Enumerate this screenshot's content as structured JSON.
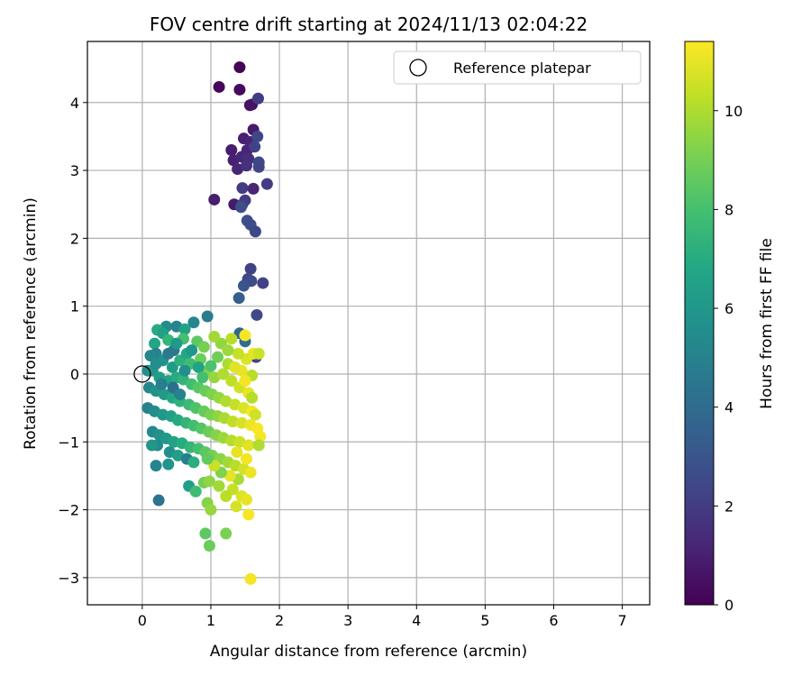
{
  "chart_data": {
    "type": "scatter",
    "title": "FOV centre drift starting at 2024/11/13 02:04:22",
    "xlabel": "Angular distance from reference (arcmin)",
    "ylabel": "Rotation from reference (arcmin)",
    "xlim": [
      -0.8,
      7.4
    ],
    "ylim": [
      -3.4,
      4.9
    ],
    "xticks": [
      0,
      1,
      2,
      3,
      4,
      5,
      6,
      7
    ],
    "yticks": [
      -3,
      -2,
      -1,
      0,
      1,
      2,
      3,
      4
    ],
    "grid": true,
    "legend": {
      "placement": "top-right",
      "entries": [
        "Reference platepar"
      ]
    },
    "reference_point": {
      "x": 0,
      "y": 0,
      "label": "Reference platepar"
    },
    "colorbar": {
      "label": "Hours from first FF file",
      "range": [
        0,
        11.4
      ],
      "ticks": [
        0,
        2,
        4,
        6,
        8,
        10
      ],
      "colormap": "viridis"
    },
    "series": [
      {
        "note": "scatter points [x, y, hours]",
        "points": [
          [
            1.42,
            4.52,
            0.1
          ],
          [
            1.12,
            4.23,
            0.2
          ],
          [
            1.42,
            4.19,
            0.3
          ],
          [
            1.57,
            3.96,
            0.5
          ],
          [
            1.6,
            3.97,
            0.6
          ],
          [
            1.69,
            4.06,
            2.0
          ],
          [
            1.62,
            3.6,
            0.8
          ],
          [
            1.48,
            3.47,
            1.0
          ],
          [
            1.58,
            3.42,
            1.1
          ],
          [
            1.3,
            3.3,
            0.9
          ],
          [
            1.53,
            3.3,
            1.2
          ],
          [
            1.64,
            3.35,
            2.2
          ],
          [
            1.68,
            3.5,
            2.4
          ],
          [
            1.33,
            3.15,
            1.0
          ],
          [
            1.45,
            3.2,
            1.3
          ],
          [
            1.55,
            3.17,
            1.5
          ],
          [
            1.7,
            3.12,
            2.5
          ],
          [
            1.39,
            3.02,
            1.2
          ],
          [
            1.52,
            3.07,
            1.6
          ],
          [
            1.7,
            3.05,
            2.3
          ],
          [
            1.82,
            2.8,
            2.0
          ],
          [
            1.46,
            2.74,
            2.0
          ],
          [
            1.62,
            2.73,
            1.2
          ],
          [
            1.05,
            2.57,
            0.9
          ],
          [
            1.34,
            2.5,
            0.8
          ],
          [
            1.46,
            2.5,
            2.5
          ],
          [
            1.5,
            2.56,
            2.0
          ],
          [
            1.44,
            2.46,
            2.7
          ],
          [
            1.53,
            2.26,
            2.8
          ],
          [
            1.58,
            2.2,
            2.6
          ],
          [
            1.65,
            2.1,
            2.4
          ],
          [
            1.58,
            1.55,
            2.2
          ],
          [
            1.54,
            1.4,
            2.4
          ],
          [
            1.59,
            1.37,
            2.6
          ],
          [
            1.48,
            1.3,
            3.0
          ],
          [
            1.76,
            1.34,
            2.2
          ],
          [
            1.41,
            1.12,
            3.4
          ],
          [
            1.67,
            0.87,
            2.5
          ],
          [
            1.66,
            0.25,
            2.3
          ],
          [
            0.95,
            0.85,
            4.8
          ],
          [
            0.75,
            0.76,
            5.2
          ],
          [
            1.42,
            0.6,
            3.8
          ],
          [
            1.5,
            0.48,
            4.0
          ],
          [
            0.35,
            0.7,
            5.5
          ],
          [
            0.5,
            0.7,
            5.0
          ],
          [
            0.22,
            0.65,
            7.0
          ],
          [
            0.3,
            0.6,
            6.5
          ],
          [
            0.62,
            0.66,
            6.5
          ],
          [
            0.6,
            0.52,
            8.0
          ],
          [
            0.38,
            0.5,
            7.5
          ],
          [
            0.18,
            0.45,
            6.8
          ],
          [
            0.46,
            0.35,
            4.5
          ],
          [
            0.2,
            0.3,
            5.0
          ],
          [
            0.12,
            0.27,
            5.2
          ],
          [
            0.8,
            0.48,
            8.5
          ],
          [
            0.9,
            0.4,
            9.0
          ],
          [
            1.3,
            0.52,
            10.2
          ],
          [
            1.5,
            0.57,
            11.3
          ],
          [
            1.15,
            0.45,
            9.5
          ],
          [
            1.05,
            0.55,
            9.8
          ],
          [
            1.62,
            0.3,
            11.0
          ],
          [
            1.52,
            0.22,
            10.8
          ],
          [
            1.7,
            0.3,
            10.5
          ],
          [
            1.25,
            0.15,
            10.0
          ],
          [
            1.4,
            0.3,
            10.4
          ],
          [
            1.6,
            -0.02,
            10.2
          ],
          [
            1.45,
            0.05,
            11.0
          ],
          [
            0.3,
            0.2,
            5.8
          ],
          [
            0.44,
            0.1,
            6.2
          ],
          [
            0.55,
            0.2,
            7.2
          ],
          [
            0.65,
            0.3,
            6.8
          ],
          [
            0.7,
            0.15,
            7.8
          ],
          [
            0.85,
            0.22,
            8.8
          ],
          [
            0.95,
            0.05,
            9.2
          ],
          [
            1.05,
            -0.05,
            9.6
          ],
          [
            1.18,
            0.0,
            10.0
          ],
          [
            1.3,
            -0.1,
            10.3
          ],
          [
            1.42,
            -0.2,
            10.6
          ],
          [
            1.55,
            -0.28,
            11.0
          ],
          [
            0.08,
            0.05,
            5.5
          ],
          [
            0.15,
            0.05,
            6.0
          ],
          [
            0.25,
            -0.05,
            6.3
          ],
          [
            0.38,
            -0.1,
            6.6
          ],
          [
            0.5,
            -0.05,
            7.0
          ],
          [
            0.6,
            -0.08,
            7.4
          ],
          [
            0.72,
            -0.15,
            7.9
          ],
          [
            0.82,
            -0.2,
            8.4
          ],
          [
            0.92,
            -0.25,
            8.8
          ],
          [
            1.02,
            -0.3,
            9.2
          ],
          [
            1.12,
            -0.35,
            9.6
          ],
          [
            1.22,
            -0.4,
            10.0
          ],
          [
            1.35,
            -0.45,
            10.4
          ],
          [
            1.48,
            -0.5,
            10.8
          ],
          [
            1.6,
            -0.55,
            11.2
          ],
          [
            0.1,
            -0.2,
            5.2
          ],
          [
            0.2,
            -0.25,
            5.8
          ],
          [
            0.32,
            -0.3,
            6.2
          ],
          [
            0.44,
            -0.35,
            6.8
          ],
          [
            0.55,
            -0.4,
            7.3
          ],
          [
            0.68,
            -0.45,
            7.7
          ],
          [
            0.78,
            -0.5,
            8.2
          ],
          [
            0.9,
            -0.55,
            8.7
          ],
          [
            1.0,
            -0.6,
            9.1
          ],
          [
            1.1,
            -0.62,
            9.5
          ],
          [
            1.2,
            -0.65,
            9.9
          ],
          [
            1.32,
            -0.7,
            10.3
          ],
          [
            1.45,
            -0.72,
            10.7
          ],
          [
            1.58,
            -0.75,
            11.1
          ],
          [
            1.68,
            -0.8,
            11.3
          ],
          [
            0.08,
            -0.5,
            5.0
          ],
          [
            0.18,
            -0.55,
            5.5
          ],
          [
            0.3,
            -0.6,
            6.0
          ],
          [
            0.42,
            -0.62,
            6.4
          ],
          [
            0.52,
            -0.68,
            6.9
          ],
          [
            0.64,
            -0.72,
            7.4
          ],
          [
            0.75,
            -0.76,
            7.9
          ],
          [
            0.86,
            -0.8,
            8.3
          ],
          [
            0.97,
            -0.85,
            8.8
          ],
          [
            1.08,
            -0.9,
            9.3
          ],
          [
            1.18,
            -0.94,
            9.7
          ],
          [
            1.3,
            -0.98,
            10.1
          ],
          [
            1.42,
            -1.0,
            10.5
          ],
          [
            1.55,
            -1.05,
            10.9
          ],
          [
            1.72,
            -0.92,
            11.2
          ],
          [
            0.15,
            -0.85,
            5.3
          ],
          [
            0.25,
            -0.9,
            5.7
          ],
          [
            0.35,
            -0.95,
            6.1
          ],
          [
            0.46,
            -1.0,
            6.5
          ],
          [
            0.58,
            -1.02,
            7.0
          ],
          [
            0.7,
            -1.08,
            7.5
          ],
          [
            0.82,
            -1.1,
            8.0
          ],
          [
            0.92,
            -1.15,
            8.5
          ],
          [
            1.02,
            -1.2,
            9.0
          ],
          [
            1.14,
            -1.25,
            9.4
          ],
          [
            1.25,
            -1.3,
            9.8
          ],
          [
            1.36,
            -1.35,
            10.2
          ],
          [
            1.48,
            -1.4,
            10.6
          ],
          [
            1.52,
            -1.25,
            11.2
          ],
          [
            1.38,
            -1.15,
            11.0
          ],
          [
            0.22,
            -1.05,
            5.4
          ],
          [
            0.14,
            -1.05,
            6.0
          ],
          [
            0.4,
            -1.15,
            5.6
          ],
          [
            0.52,
            -1.2,
            6.3
          ],
          [
            0.65,
            -1.25,
            4.9
          ],
          [
            0.75,
            -1.3,
            7.1
          ],
          [
            0.2,
            -1.35,
            5.1
          ],
          [
            0.38,
            -1.33,
            5.9
          ],
          [
            0.68,
            -1.65,
            6.4
          ],
          [
            0.78,
            -1.73,
            7.8
          ],
          [
            0.24,
            -1.86,
            4.3
          ],
          [
            0.9,
            -1.6,
            9.0
          ],
          [
            0.98,
            -1.58,
            9.5
          ],
          [
            1.12,
            -1.65,
            9.8
          ],
          [
            1.32,
            -1.7,
            10.4
          ],
          [
            1.45,
            -1.8,
            10.8
          ],
          [
            1.52,
            -1.85,
            11.0
          ],
          [
            1.22,
            -1.8,
            10.2
          ],
          [
            0.95,
            -1.9,
            9.3
          ],
          [
            1.0,
            -2.0,
            9.6
          ],
          [
            1.37,
            -1.95,
            10.7
          ],
          [
            1.55,
            -2.07,
            11.3
          ],
          [
            0.92,
            -2.35,
            8.5
          ],
          [
            1.22,
            -2.35,
            9.1
          ],
          [
            0.98,
            -2.53,
            8.8
          ],
          [
            1.58,
            -3.02,
            11.2
          ],
          [
            0.45,
            -0.2,
            4.2
          ],
          [
            0.55,
            -0.3,
            5.0
          ],
          [
            0.38,
            0.3,
            4.6
          ],
          [
            0.28,
            -0.15,
            4.9
          ],
          [
            0.62,
            0.05,
            5.6
          ],
          [
            0.72,
            0.35,
            6.0
          ],
          [
            0.82,
            0.1,
            6.6
          ],
          [
            0.5,
            0.45,
            6.1
          ],
          [
            0.2,
            0.15,
            5.6
          ],
          [
            1.1,
            0.25,
            8.9
          ],
          [
            1.0,
            0.12,
            8.2
          ],
          [
            0.88,
            -0.05,
            8.0
          ],
          [
            1.25,
            0.35,
            9.7
          ],
          [
            1.35,
            0.1,
            10.9
          ],
          [
            1.5,
            -0.1,
            11.2
          ],
          [
            1.6,
            -0.35,
            10.1
          ],
          [
            1.65,
            -0.6,
            10.6
          ],
          [
            1.7,
            -1.05,
            10.0
          ],
          [
            1.58,
            -1.45,
            11.1
          ],
          [
            1.4,
            -1.55,
            9.9
          ],
          [
            1.28,
            -1.5,
            11.0
          ],
          [
            1.15,
            -1.45,
            9.2
          ],
          [
            1.05,
            -1.35,
            10.5
          ],
          [
            0.95,
            -1.25,
            8.6
          ]
        ]
      }
    ]
  }
}
